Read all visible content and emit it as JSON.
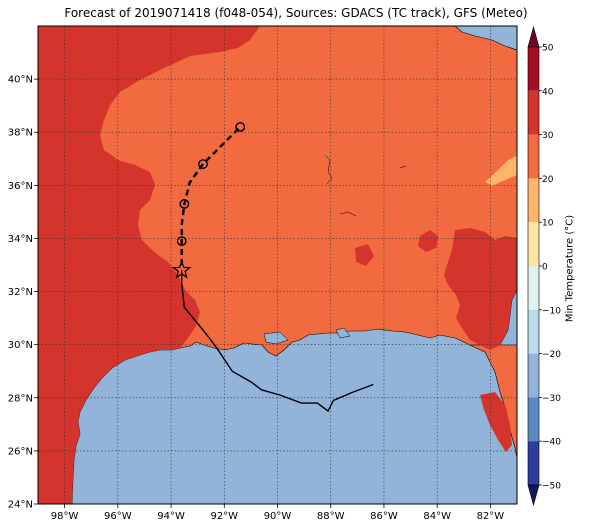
{
  "title": "Forecast of 2019071418 (f048-054), Sources: GDACS (TC track), GFS (Meteo)",
  "map": {
    "lon_range": [
      -99.0,
      -81.0
    ],
    "lat_range": [
      24.0,
      42.0
    ],
    "lon_ticks": [
      {
        "value": -98,
        "label": "98°W"
      },
      {
        "value": -96,
        "label": "96°W"
      },
      {
        "value": -94,
        "label": "94°W"
      },
      {
        "value": -92,
        "label": "92°W"
      },
      {
        "value": -90,
        "label": "90°W"
      },
      {
        "value": -88,
        "label": "88°W"
      },
      {
        "value": -86,
        "label": "86°W"
      },
      {
        "value": -84,
        "label": "84°W"
      },
      {
        "value": -82,
        "label": "82°W"
      }
    ],
    "lat_ticks": [
      {
        "value": 24,
        "label": "24°N"
      },
      {
        "value": 26,
        "label": "26°N"
      },
      {
        "value": 28,
        "label": "28°N"
      },
      {
        "value": 30,
        "label": "30°N"
      },
      {
        "value": 32,
        "label": "32°N"
      },
      {
        "value": 34,
        "label": "34°N"
      },
      {
        "value": 36,
        "label": "36°N"
      },
      {
        "value": 38,
        "label": "38°N"
      },
      {
        "value": 40,
        "label": "40°N"
      }
    ],
    "colors": {
      "ocean": "#92b4d8",
      "land_20_30": "#f26a3f",
      "land_30_40": "#d4342b",
      "land_10_20": "#fdb46b"
    },
    "observed_track": [
      [
        -86.4,
        28.5
      ],
      [
        -87.2,
        28.2
      ],
      [
        -87.9,
        27.9
      ],
      [
        -88.1,
        27.5
      ],
      [
        -88.5,
        27.8
      ],
      [
        -89.1,
        27.8
      ],
      [
        -89.9,
        28.1
      ],
      [
        -90.6,
        28.3
      ],
      [
        -91.0,
        28.6
      ],
      [
        -91.7,
        29.0
      ],
      [
        -92.3,
        29.9
      ],
      [
        -92.6,
        30.3
      ],
      [
        -93.0,
        30.8
      ],
      [
        -93.5,
        31.4
      ],
      [
        -93.6,
        32.3
      ],
      [
        -93.6,
        32.8
      ]
    ],
    "current_position": [
      -93.6,
      32.8
    ],
    "forecast_points": [
      [
        -93.6,
        33.9
      ],
      [
        -93.5,
        35.3
      ],
      [
        -92.8,
        36.8
      ],
      [
        -91.4,
        38.2
      ]
    ],
    "forecast_line": [
      [
        -93.6,
        33.0
      ],
      [
        -93.6,
        33.9
      ],
      [
        -93.6,
        34.5
      ],
      [
        -93.5,
        35.3
      ],
      [
        -93.3,
        36.1
      ],
      [
        -92.8,
        36.8
      ],
      [
        -92.2,
        37.4
      ],
      [
        -91.4,
        38.2
      ]
    ]
  },
  "colorbar": {
    "label": "Min Temperature (°C)",
    "range": [
      -50,
      50
    ],
    "ticks": [
      {
        "value": 50,
        "label": "50"
      },
      {
        "value": 40,
        "label": "40"
      },
      {
        "value": 30,
        "label": "30"
      },
      {
        "value": 20,
        "label": "20"
      },
      {
        "value": 10,
        "label": "10"
      },
      {
        "value": 0,
        "label": "0"
      },
      {
        "value": -10,
        "label": "−10"
      },
      {
        "value": -20,
        "label": "−20"
      },
      {
        "value": -30,
        "label": "−30"
      },
      {
        "value": -40,
        "label": "−40"
      },
      {
        "value": -50,
        "label": "−50"
      }
    ],
    "bins": [
      {
        "from": 40,
        "to": 50,
        "color": "#a50f26"
      },
      {
        "from": 30,
        "to": 40,
        "color": "#d4342b"
      },
      {
        "from": 20,
        "to": 30,
        "color": "#f26a3f"
      },
      {
        "from": 10,
        "to": 20,
        "color": "#fdb46b"
      },
      {
        "from": 0,
        "to": 10,
        "color": "#fee4a0"
      },
      {
        "from": -10,
        "to": 0,
        "color": "#e2f2f1"
      },
      {
        "from": -20,
        "to": -10,
        "color": "#b7dcea"
      },
      {
        "from": -30,
        "to": -20,
        "color": "#92b4d8"
      },
      {
        "from": -40,
        "to": -30,
        "color": "#5b8ac3"
      },
      {
        "from": -50,
        "to": -40,
        "color": "#2f3c9c"
      }
    ],
    "top_extend_color": "#7a0124",
    "bottom_extend_color": "#18155f"
  }
}
